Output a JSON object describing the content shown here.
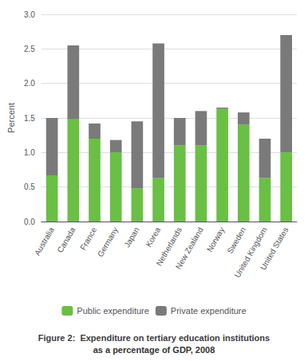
{
  "chart_data": {
    "type": "bar",
    "stacked": true,
    "categories": [
      "Australia",
      "Canada",
      "France",
      "Germany",
      "Japan",
      "Korea",
      "Netherlands",
      "New Zealand",
      "Norway",
      "Sweden",
      "United Kingdom",
      "United States"
    ],
    "series": [
      {
        "name": "Public expenditure",
        "color": "#6abf45",
        "values": [
          0.67,
          1.48,
          1.2,
          1.0,
          0.48,
          0.63,
          1.1,
          1.1,
          1.63,
          1.4,
          0.63,
          1.0
        ]
      },
      {
        "name": "Private expenditure",
        "color": "#7a7a7a",
        "values": [
          0.83,
          1.07,
          0.22,
          0.18,
          0.97,
          1.95,
          0.4,
          0.5,
          0.02,
          0.18,
          0.57,
          1.7
        ]
      }
    ],
    "ylabel": "Percent",
    "ylim": [
      0.0,
      3.0
    ],
    "yticks": [
      {
        "value": 0,
        "label": "0.0"
      },
      0.5,
      {
        "value": 1,
        "label": "1.0"
      },
      1.5,
      {
        "value": 2,
        "label": "2.0"
      },
      2.5,
      {
        "value": 3,
        "label": "3.0"
      }
    ],
    "grid": true,
    "legend": "bottom",
    "annotations": [
      "Figure 2:  Expenditure on tertiary education institutions",
      "as a percentage of GDP, 2008"
    ]
  }
}
